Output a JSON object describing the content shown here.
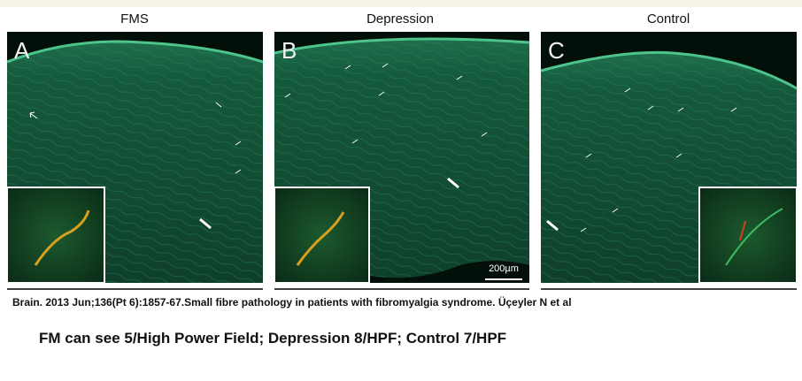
{
  "panels": [
    {
      "title": "FMS",
      "letter": "A"
    },
    {
      "title": "Depression",
      "letter": "B"
    },
    {
      "title": "Control",
      "letter": "C"
    }
  ],
  "scale_bar": "200µm",
  "citation": "Brain. 2013 Jun;136(Pt 6):1857-67.Small fibre pathology in patients with fibromyalgia syndrome. Üçeyler N et al",
  "summary": "FM can see 5/High Power Field;  Depression 8/HPF;  Control 7/HPF"
}
